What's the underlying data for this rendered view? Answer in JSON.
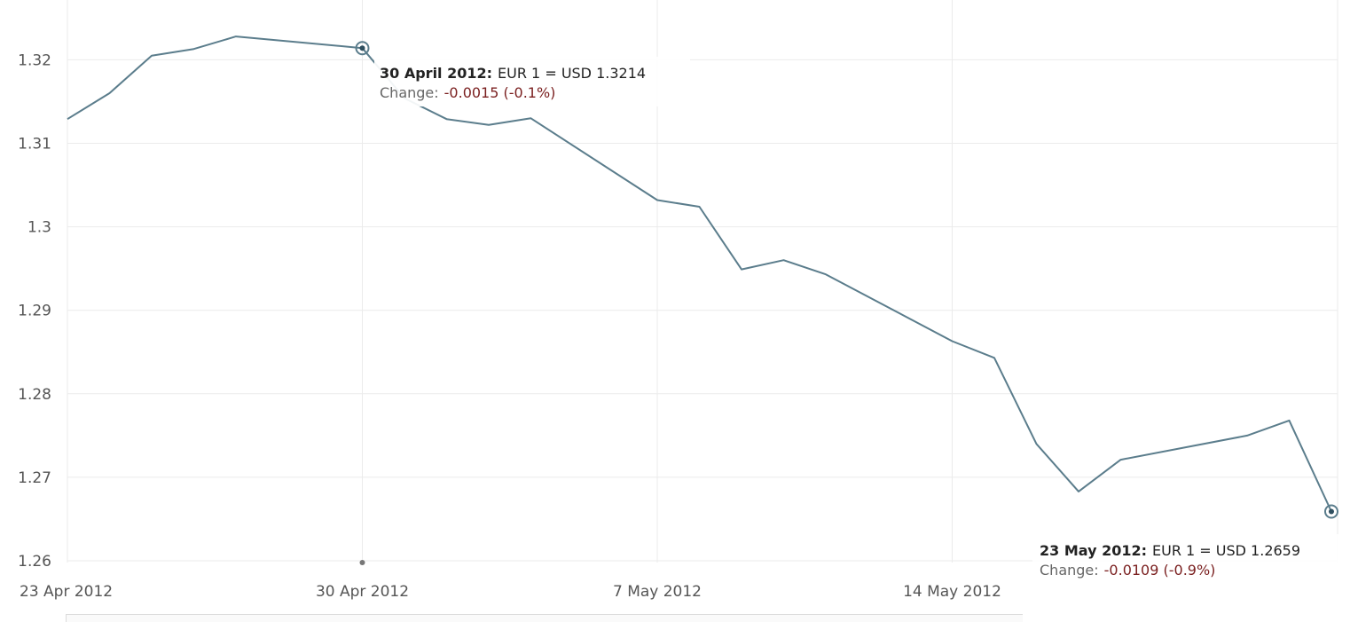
{
  "chart_data": {
    "type": "line",
    "title": "",
    "xlabel": "",
    "ylabel": "",
    "ylim": [
      1.26,
      1.3275
    ],
    "y_ticks": [
      1.32,
      1.31,
      1.3,
      1.29,
      1.28,
      1.27,
      1.26
    ],
    "y_tick_labels": [
      "1.32",
      "1.31",
      "1.3",
      "1.29",
      "1.28",
      "1.27",
      "1.26"
    ],
    "x_ticks": [
      {
        "date": "2012-04-23",
        "label": "23 Apr 2012"
      },
      {
        "date": "2012-04-30",
        "label": "30 Apr 2012"
      },
      {
        "date": "2012-05-07",
        "label": "7 May 2012"
      },
      {
        "date": "2012-05-14",
        "label": "14 May 2012"
      }
    ],
    "grid": true,
    "series": [
      {
        "name": "EUR/USD",
        "color": "#5b7d8c",
        "points": [
          {
            "date": "2012-04-23",
            "value": 1.3129
          },
          {
            "date": "2012-04-24",
            "value": 1.316
          },
          {
            "date": "2012-04-25",
            "value": 1.3205
          },
          {
            "date": "2012-04-26",
            "value": 1.3213
          },
          {
            "date": "2012-04-27",
            "value": 1.3228
          },
          {
            "date": "2012-04-30",
            "value": 1.3214
          },
          {
            "date": "2012-05-01",
            "value": 1.3154
          },
          {
            "date": "2012-05-02",
            "value": 1.3129
          },
          {
            "date": "2012-05-03",
            "value": 1.3122
          },
          {
            "date": "2012-05-04",
            "value": 1.313
          },
          {
            "date": "2012-05-07",
            "value": 1.3032
          },
          {
            "date": "2012-05-08",
            "value": 1.3024
          },
          {
            "date": "2012-05-09",
            "value": 1.2949
          },
          {
            "date": "2012-05-10",
            "value": 1.296
          },
          {
            "date": "2012-05-11",
            "value": 1.2943
          },
          {
            "date": "2012-05-14",
            "value": 1.2863
          },
          {
            "date": "2012-05-15",
            "value": 1.2843
          },
          {
            "date": "2012-05-16",
            "value": 1.274
          },
          {
            "date": "2012-05-17",
            "value": 1.2683
          },
          {
            "date": "2012-05-18",
            "value": 1.2721
          },
          {
            "date": "2012-05-21",
            "value": 1.275
          },
          {
            "date": "2012-05-22",
            "value": 1.2768
          },
          {
            "date": "2012-05-23",
            "value": 1.2659
          }
        ]
      }
    ],
    "annotations": [
      {
        "date": "2012-04-30",
        "value": 1.3214,
        "label_bold": "30 April 2012:",
        "label_rate": "EUR 1 = USD 1.3214",
        "change_label": "Change:",
        "change_value": "-0.0015 (-0.1%)"
      },
      {
        "date": "2012-05-23",
        "value": 1.2659,
        "label_bold": "23 May 2012:",
        "label_rate": "EUR 1 = USD 1.2659",
        "change_label": "Change:",
        "change_value": "-0.0109 (-0.9%)"
      }
    ]
  }
}
